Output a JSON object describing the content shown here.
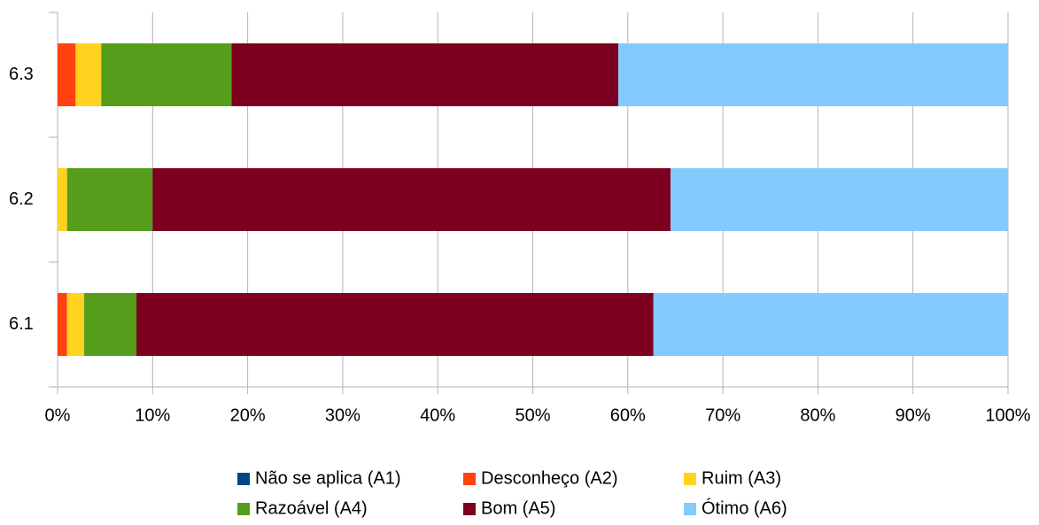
{
  "chart_data": {
    "type": "stacked-bar-horizontal",
    "categories": [
      "6.1",
      "6.2",
      "6.3"
    ],
    "series": [
      {
        "name": "Não se aplica (A1)",
        "color": "#004586",
        "values": [
          0,
          0,
          0
        ]
      },
      {
        "name": "Desconheço (A2)",
        "color": "#ff420e",
        "values": [
          1.0,
          0,
          1.9
        ]
      },
      {
        "name": "Ruim (A3)",
        "color": "#ffd320",
        "values": [
          1.8,
          1.0,
          2.7
        ]
      },
      {
        "name": "Razoável (A4)",
        "color": "#579d1c",
        "values": [
          5.5,
          9.0,
          13.7
        ]
      },
      {
        "name": "Bom (A5)",
        "color": "#7e0021",
        "values": [
          54.4,
          54.5,
          40.7
        ]
      },
      {
        "name": "Ótimo (A6)",
        "color": "#83caff",
        "values": [
          37.3,
          35.5,
          41.0
        ]
      }
    ],
    "xlim": [
      0,
      100
    ],
    "xticks": [
      {
        "value": 0,
        "label": "0%"
      },
      {
        "value": 10,
        "label": "10%"
      },
      {
        "value": 20,
        "label": "20%"
      },
      {
        "value": 30,
        "label": "30%"
      },
      {
        "value": 40,
        "label": "40%"
      },
      {
        "value": 50,
        "label": "50%"
      },
      {
        "value": 60,
        "label": "60%"
      },
      {
        "value": 70,
        "label": "70%"
      },
      {
        "value": 80,
        "label": "80%"
      },
      {
        "value": 90,
        "label": "90%"
      },
      {
        "value": 100,
        "label": "100%"
      }
    ],
    "grid": true,
    "legend": "bottom"
  }
}
